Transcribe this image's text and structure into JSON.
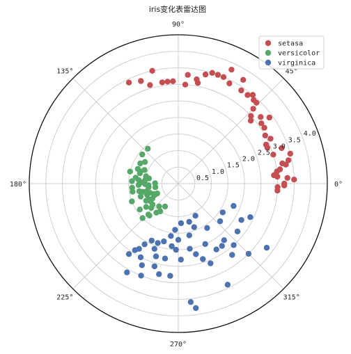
{
  "chart_data": {
    "type": "scatter",
    "projection": "polar",
    "title": "iris变化表雷达图",
    "angle_unit": "deg",
    "angle_ticks": [
      0,
      45,
      90,
      135,
      180,
      225,
      270,
      315
    ],
    "angle_tick_labels": [
      "0°",
      "45°",
      "90°",
      "135°",
      "180°",
      "225°",
      "270°",
      "315°"
    ],
    "r_ticks": [
      0.5,
      1.0,
      1.5,
      2.0,
      2.5,
      3.0,
      3.5,
      4.0
    ],
    "r_tick_labels": [
      "0.5",
      "1.0",
      "1.5",
      "2.0",
      "2.5",
      "3.0",
      "3.5",
      "4.0"
    ],
    "rlim": [
      0,
      4.5
    ],
    "grid": true,
    "legend_position": "top-right",
    "series": [
      {
        "name": "setasa",
        "color": "#c44e52",
        "points": [
          [
            -4,
            3.0
          ],
          [
            -2,
            3.0
          ],
          [
            -1,
            3.2
          ],
          [
            0,
            3.2
          ],
          [
            2,
            3.5
          ],
          [
            3,
            3.3
          ],
          [
            4,
            3.0
          ],
          [
            5,
            2.9
          ],
          [
            7,
            3.0
          ],
          [
            8,
            3.1
          ],
          [
            10,
            3.3
          ],
          [
            11,
            3.2
          ],
          [
            12,
            3.4
          ],
          [
            15,
            3.5
          ],
          [
            17,
            3.0
          ],
          [
            19,
            3.3
          ],
          [
            22,
            2.9
          ],
          [
            24,
            2.9
          ],
          [
            26,
            3.1
          ],
          [
            29,
            3.0
          ],
          [
            33,
            3.1
          ],
          [
            36,
            3.1
          ],
          [
            36,
            3.4
          ],
          [
            39,
            3.2
          ],
          [
            41,
            2.9
          ],
          [
            43,
            3.0
          ],
          [
            45,
            3.2
          ],
          [
            46,
            3.4
          ],
          [
            48,
            3.4
          ],
          [
            50,
            3.5
          ],
          [
            52,
            3.4
          ],
          [
            56,
            3.4
          ],
          [
            58,
            3.7
          ],
          [
            63,
            3.4
          ],
          [
            65,
            3.8
          ],
          [
            67,
            3.5
          ],
          [
            70,
            3.5
          ],
          [
            73,
            3.5
          ],
          [
            76,
            3.4
          ],
          [
            79,
            3.1
          ],
          [
            80,
            3.2
          ],
          [
            85,
            3.3
          ],
          [
            86,
            3.0
          ],
          [
            93,
            3.1
          ],
          [
            96,
            3.1
          ],
          [
            99,
            3.1
          ],
          [
            103,
            3.5
          ],
          [
            106,
            3.1
          ],
          [
            110,
            3.3
          ],
          [
            116,
            3.4
          ]
        ]
      },
      {
        "name": "versicolor",
        "color": "#55a868",
        "points": [
          [
            131,
            1.4
          ],
          [
            141,
            1.4
          ],
          [
            147,
            1.2
          ],
          [
            152,
            1.3
          ],
          [
            158,
            1.1
          ],
          [
            160,
            1.3
          ],
          [
            162,
            1.2
          ],
          [
            165,
            1.2
          ],
          [
            166,
            1.5
          ],
          [
            167,
            1.0
          ],
          [
            170,
            0.9
          ],
          [
            172,
            1.3
          ],
          [
            173,
            1.0
          ],
          [
            175,
            1.2
          ],
          [
            177,
            1.4
          ],
          [
            178,
            1.1
          ],
          [
            179,
            0.7
          ],
          [
            181,
            1.0
          ],
          [
            182,
            1.2
          ],
          [
            183,
            0.9
          ],
          [
            185,
            1.4
          ],
          [
            187,
            0.9
          ],
          [
            189,
            0.7
          ],
          [
            190,
            1.4
          ],
          [
            191,
            1.2
          ],
          [
            193,
            1.1
          ],
          [
            194,
            1.0
          ],
          [
            196,
            1.0
          ],
          [
            198,
            0.9
          ],
          [
            199,
            1.2
          ],
          [
            200,
            1.0
          ],
          [
            201,
            1.5
          ],
          [
            203,
            0.8
          ],
          [
            205,
            0.7
          ],
          [
            206,
            0.8
          ],
          [
            208,
            1.1
          ],
          [
            209,
            1.0
          ],
          [
            210,
            0.9
          ],
          [
            212,
            1.0
          ],
          [
            214,
            1.4
          ],
          [
            216,
            1.2
          ],
          [
            219,
            1.0
          ],
          [
            222,
            1.1
          ],
          [
            224,
            1.5
          ],
          [
            226,
            1.3
          ],
          [
            228,
            1.3
          ],
          [
            230,
            0.9
          ],
          [
            233,
            1.1
          ],
          [
            237,
            1.0
          ],
          [
            240,
            0.8
          ]
        ]
      },
      {
        "name": "virginica",
        "color": "#4c72b0",
        "points": [
          [
            235,
            2.6
          ],
          [
            237,
            2.4
          ],
          [
            239,
            2.3
          ],
          [
            240,
            3.1
          ],
          [
            241,
            2.1
          ],
          [
            243,
            2.5
          ],
          [
            245,
            1.9
          ],
          [
            246,
            2.7
          ],
          [
            248,
            3.0
          ],
          [
            250,
            2.1
          ],
          [
            251,
            1.9
          ],
          [
            253,
            2.3
          ],
          [
            254,
            2.6
          ],
          [
            256,
            1.8
          ],
          [
            258,
            2.8
          ],
          [
            260,
            2.3
          ],
          [
            262,
            1.6
          ],
          [
            264,
            1.9
          ],
          [
            265,
            2.8
          ],
          [
            266,
            1.4
          ],
          [
            268,
            2.0
          ],
          [
            270,
            1.7
          ],
          [
            272,
            2.3
          ],
          [
            274,
            1.2
          ],
          [
            276,
            3.6
          ],
          [
            278,
            3.8
          ],
          [
            280,
            2.0
          ],
          [
            282,
            1.6
          ],
          [
            284,
            2.2
          ],
          [
            286,
            1.2
          ],
          [
            288,
            2.4
          ],
          [
            290,
            1.4
          ],
          [
            292,
            2.6
          ],
          [
            294,
            2.0
          ],
          [
            296,
            3.4
          ],
          [
            298,
            1.1
          ],
          [
            300,
            2.3
          ],
          [
            303,
            1.6
          ],
          [
            305,
            2.3
          ],
          [
            307,
            2.7
          ],
          [
            309,
            2.2
          ],
          [
            312,
            2.5
          ],
          [
            315,
            3.0
          ],
          [
            318,
            1.7
          ],
          [
            321,
            2.3
          ],
          [
            324,
            3.3
          ],
          [
            327,
            1.6
          ],
          [
            330,
            2.2
          ],
          [
            335,
            2.4
          ],
          [
            338,
            1.8
          ]
        ]
      }
    ]
  }
}
